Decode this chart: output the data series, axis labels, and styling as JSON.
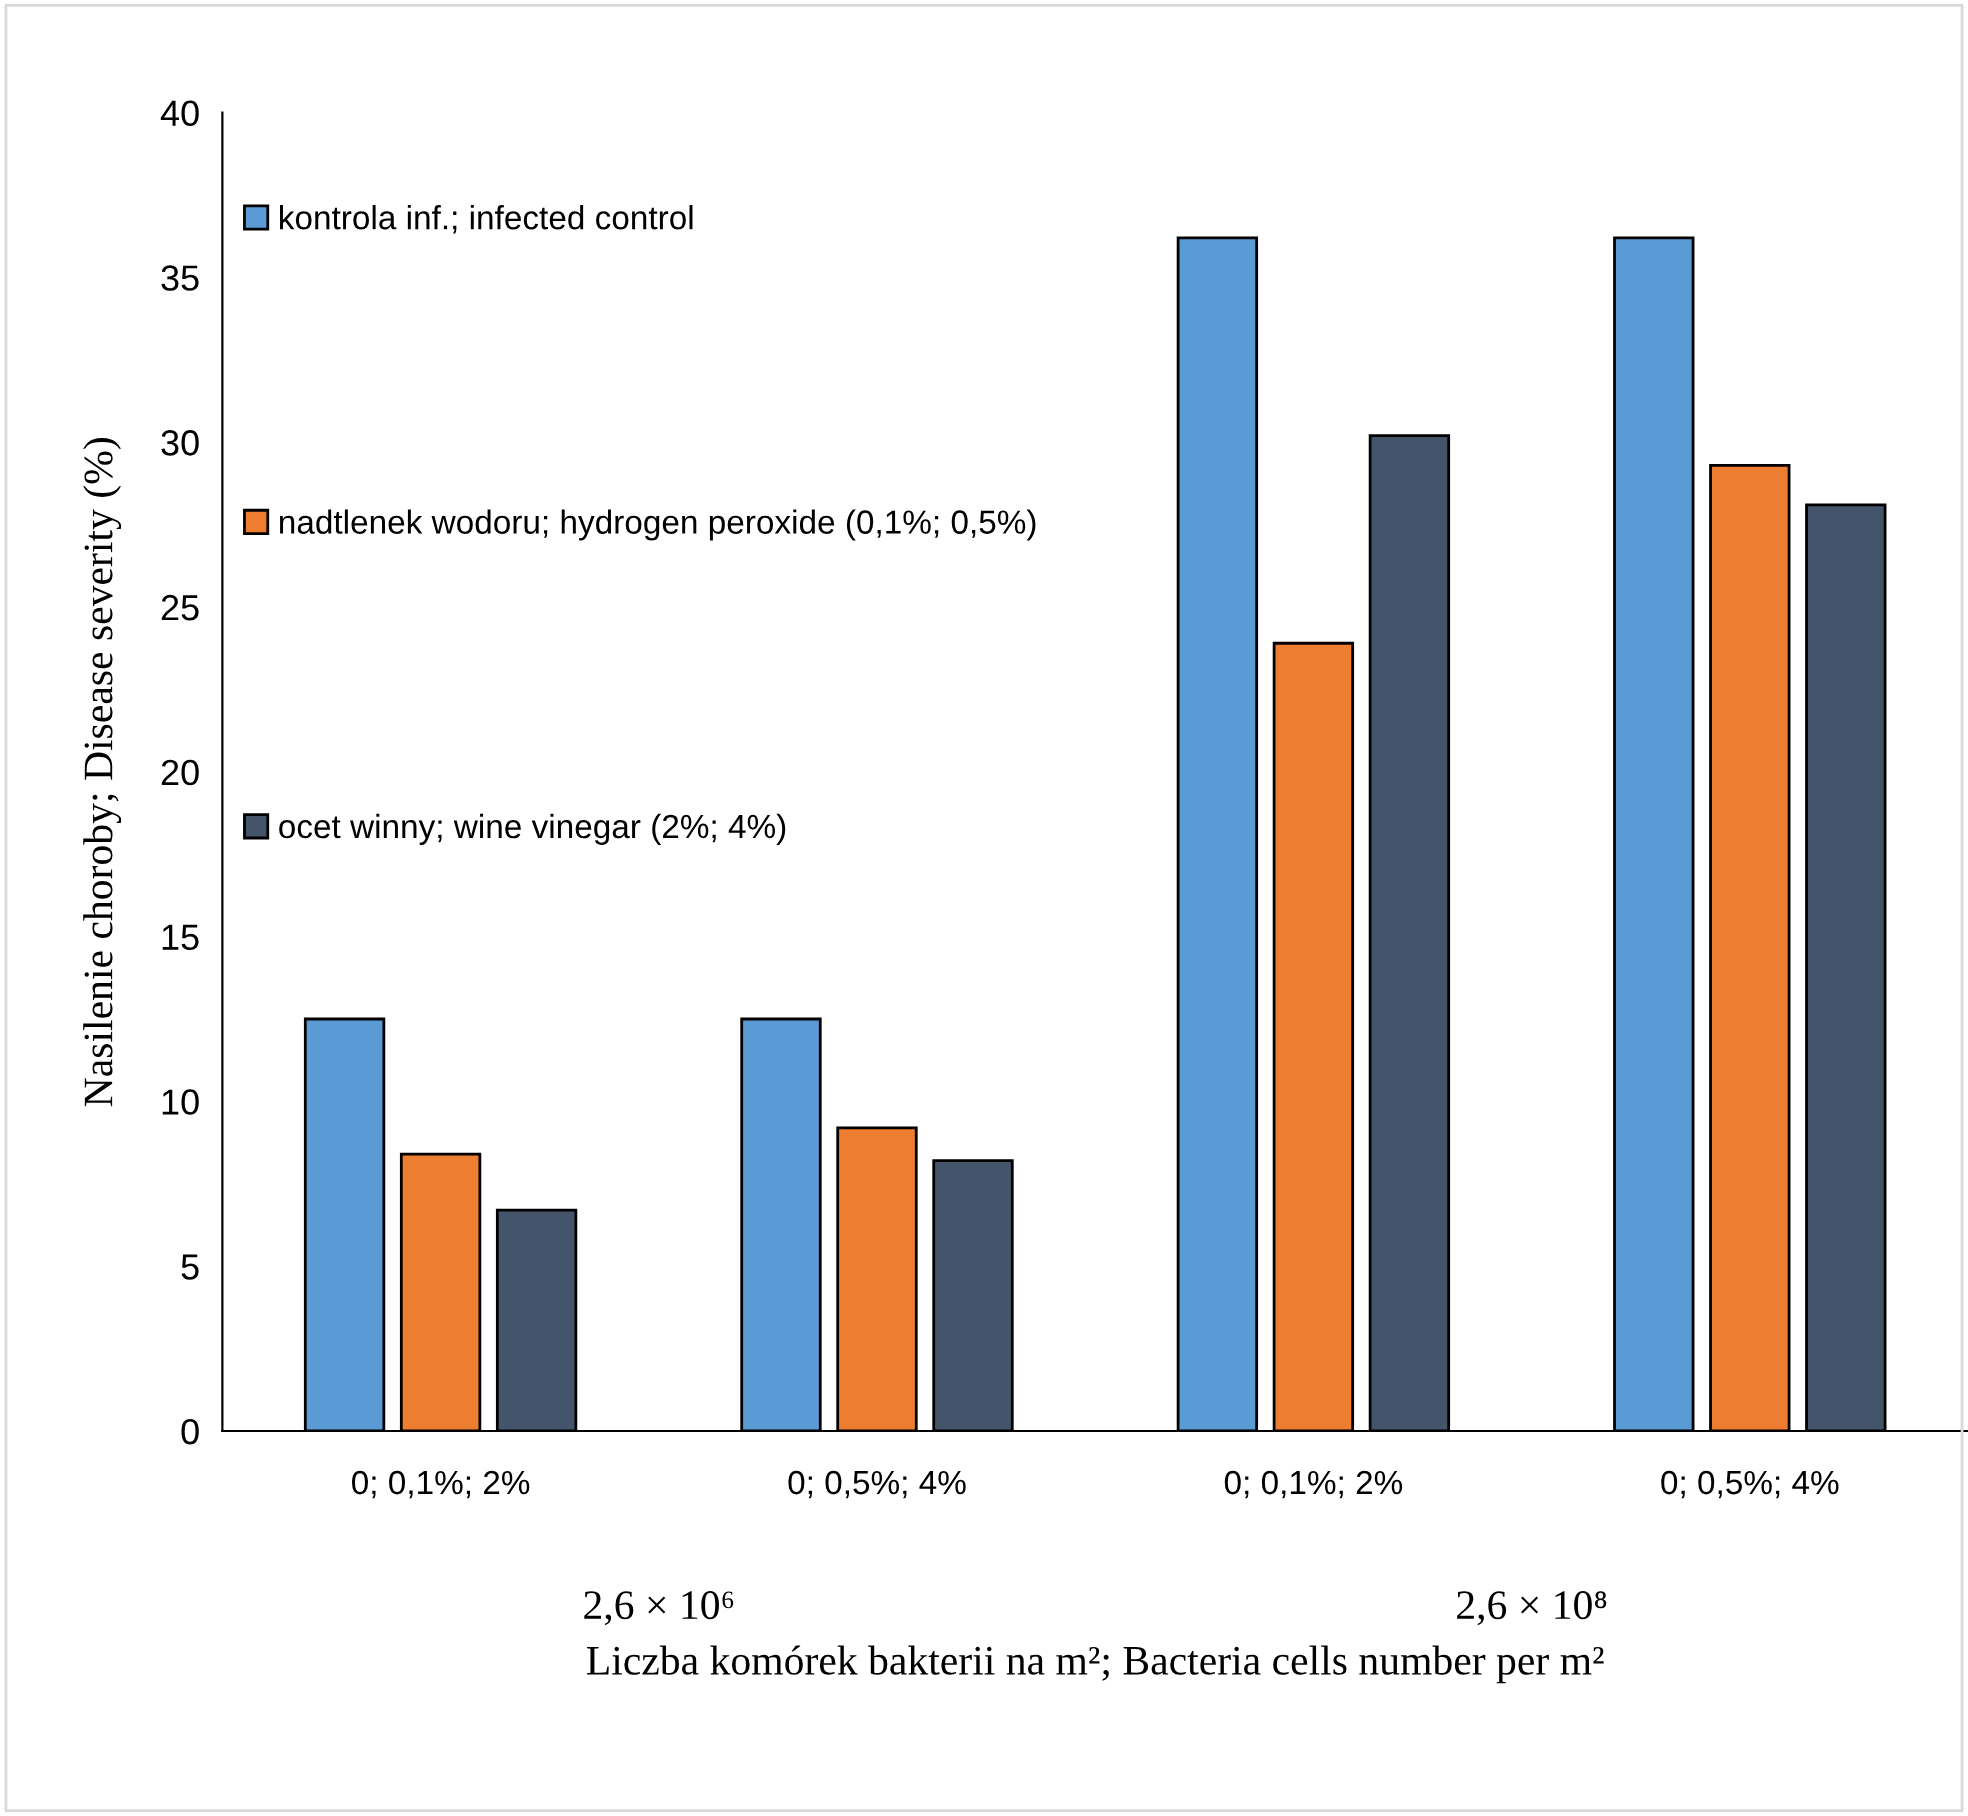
{
  "chart_data": {
    "type": "bar",
    "ylabel": "Nasilenie choroby; Disease severity (%)",
    "xlabel": "Liczba komórek bakterii na m²; Bacteria cells number per m²",
    "categories": [
      "0; 0,1%; 2%",
      "0; 0,5%; 4%",
      "0; 0,1%; 2%",
      "0; 0,5%; 4%"
    ],
    "series": [
      {
        "name": "kontrola inf.; infected control",
        "color": "#5b9bd5",
        "values": [
          12.5,
          12.5,
          36.2,
          36.2
        ]
      },
      {
        "name": "nadtlenek wodoru; hydrogen peroxide (0,1%; 0,5%)",
        "color": "#ed7d31",
        "values": [
          8.4,
          9.2,
          23.9,
          29.3
        ]
      },
      {
        "name": "ocet winny; wine vinegar (2%; 4%)",
        "color": "#44546a",
        "values": [
          6.7,
          8.2,
          30.2,
          28.1
        ]
      }
    ],
    "annotations": [
      "2,6 × 10⁶",
      "2,6 × 10⁸"
    ],
    "ylim": [
      0,
      40
    ],
    "yticks": [
      0,
      5,
      10,
      15,
      20,
      25,
      30,
      35,
      40
    ],
    "grid": false,
    "legend": "top left"
  }
}
